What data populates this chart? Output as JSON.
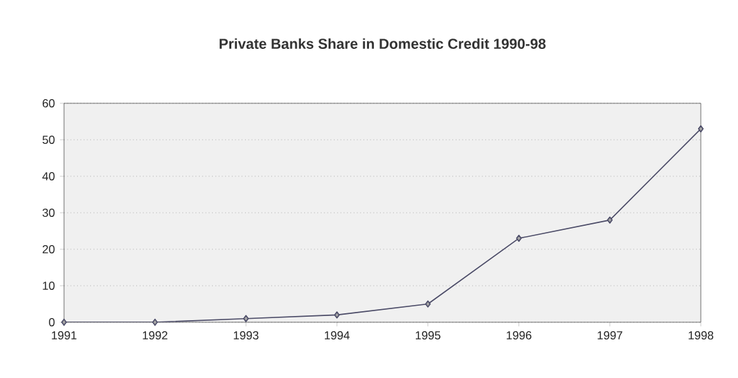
{
  "chart_data": {
    "type": "line",
    "title": "Private Banks Share in Domestic Credit 1990-98",
    "categories": [
      "1991",
      "1992",
      "1993",
      "1994",
      "1995",
      "1996",
      "1997",
      "1998"
    ],
    "values": [
      0,
      0,
      1,
      2,
      5,
      23,
      28,
      53
    ],
    "color": "#4a4a66",
    "marker": "diamond",
    "ylim": [
      0,
      60
    ],
    "yticks": [
      0,
      10,
      20,
      30,
      40,
      50,
      60
    ],
    "grid": "y"
  }
}
